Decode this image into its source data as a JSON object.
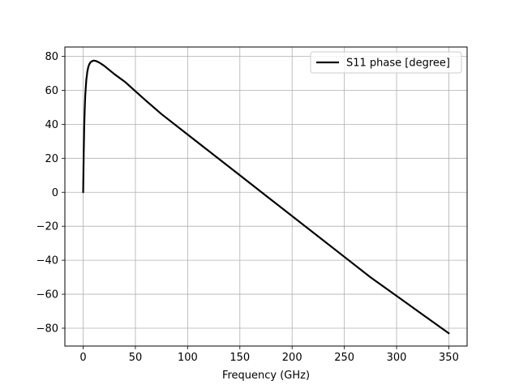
{
  "chart_data": {
    "type": "line",
    "title": "",
    "xlabel": "Frequency (GHz)",
    "ylabel": "",
    "xlim": [
      -17.5,
      367.5
    ],
    "ylim": [
      -90.5,
      85.5
    ],
    "xticks": [
      0,
      50,
      100,
      150,
      200,
      250,
      300,
      350
    ],
    "yticks": [
      -80,
      -60,
      -40,
      -20,
      0,
      20,
      40,
      60,
      80
    ],
    "xtick_labels": [
      "0",
      "50",
      "100",
      "150",
      "200",
      "250",
      "300",
      "350"
    ],
    "ytick_labels": [
      "−80",
      "−60",
      "−40",
      "−20",
      "0",
      "20",
      "40",
      "60",
      "80"
    ],
    "grid": true,
    "legend_position": "top-right",
    "series": [
      {
        "name": "S11 phase [degree]",
        "color": "#000000",
        "x": [
          0,
          0.5,
          1,
          1.5,
          2,
          3,
          4,
          5,
          6,
          7,
          8,
          10,
          12,
          15,
          20,
          25,
          30,
          40,
          50,
          60,
          75,
          100,
          125,
          150,
          175,
          200,
          225,
          250,
          275,
          300,
          325,
          350
        ],
        "y": [
          0,
          22,
          38,
          49,
          57,
          66,
          71,
          74,
          75.5,
          76.5,
          77,
          77.5,
          77.3,
          76.5,
          74.5,
          72,
          69.5,
          65,
          59.5,
          54,
          46,
          34,
          22,
          10,
          -2,
          -14,
          -26,
          -38,
          -50,
          -61,
          -72,
          -83
        ]
      }
    ]
  }
}
